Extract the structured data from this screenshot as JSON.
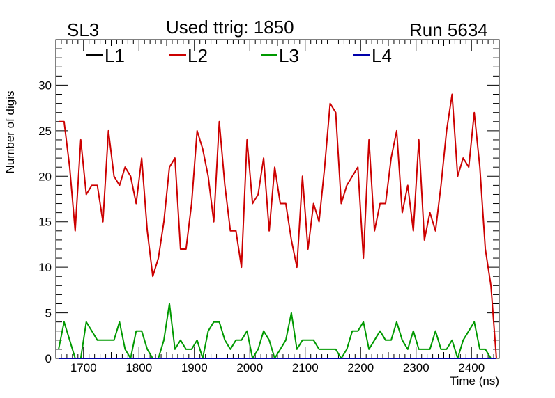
{
  "header": {
    "left": "SL3",
    "center": "Used ttrig: 1850",
    "right": "Run 5634"
  },
  "chart_data": {
    "type": "line",
    "xlabel": "Time (ns)",
    "ylabel": "Number of digis",
    "xlim": [
      1650,
      2450
    ],
    "ylim": [
      0,
      35
    ],
    "xticks": [
      1700,
      1800,
      1900,
      2000,
      2100,
      2200,
      2300,
      2400
    ],
    "yticks": [
      0,
      5,
      10,
      15,
      20,
      25,
      30
    ],
    "grid": false,
    "legend_position": "top",
    "x": [
      1655,
      1665,
      1675,
      1685,
      1695,
      1705,
      1715,
      1725,
      1735,
      1745,
      1755,
      1765,
      1775,
      1785,
      1795,
      1805,
      1815,
      1825,
      1835,
      1845,
      1855,
      1865,
      1875,
      1885,
      1895,
      1905,
      1915,
      1925,
      1935,
      1945,
      1955,
      1965,
      1975,
      1985,
      1995,
      2005,
      2015,
      2025,
      2035,
      2045,
      2055,
      2065,
      2075,
      2085,
      2095,
      2105,
      2115,
      2125,
      2135,
      2145,
      2155,
      2165,
      2175,
      2185,
      2195,
      2205,
      2215,
      2225,
      2235,
      2245,
      2255,
      2265,
      2275,
      2285,
      2295,
      2305,
      2315,
      2325,
      2335,
      2345,
      2355,
      2365,
      2375,
      2385,
      2395,
      2405,
      2415,
      2425,
      2435,
      2445
    ],
    "series": [
      {
        "name": "L1",
        "color": "#000000",
        "values": [
          0,
          0,
          0,
          0,
          0,
          0,
          0,
          0,
          0,
          0,
          0,
          0,
          0,
          0,
          0,
          0,
          0,
          0,
          0,
          0,
          0,
          0,
          0,
          0,
          0,
          0,
          0,
          0,
          0,
          0,
          0,
          0,
          0,
          0,
          0,
          0,
          0,
          0,
          0,
          0,
          0,
          0,
          0,
          0,
          0,
          0,
          0,
          0,
          0,
          0,
          0,
          0,
          0,
          0,
          0,
          0,
          0,
          0,
          0,
          0,
          0,
          0,
          0,
          0,
          0,
          0,
          0,
          0,
          0,
          0,
          0,
          0,
          0,
          0,
          0,
          0,
          0,
          0,
          0,
          0
        ]
      },
      {
        "name": "L2",
        "color": "#cc0000",
        "values": [
          26,
          26,
          21,
          14,
          24,
          18,
          19,
          19,
          15,
          25,
          20,
          19,
          21,
          20,
          17,
          22,
          14,
          9,
          11,
          15,
          21,
          22,
          12,
          12,
          17,
          25,
          23,
          20,
          15,
          26,
          19,
          14,
          14,
          10,
          24,
          17,
          18,
          22,
          14,
          21,
          17,
          17,
          13,
          10,
          20,
          12,
          17,
          15,
          21,
          28,
          27,
          17,
          19,
          20,
          21,
          11,
          24,
          14,
          17,
          17,
          22,
          25,
          16,
          19,
          14,
          24,
          13,
          16,
          14,
          19,
          25,
          29,
          20,
          22,
          21,
          27,
          21,
          12,
          8,
          0
        ]
      },
      {
        "name": "L3",
        "color": "#009900",
        "values": [
          1,
          4,
          2,
          0,
          0,
          4,
          3,
          2,
          2,
          2,
          2,
          4,
          1,
          0,
          3,
          3,
          1,
          0,
          0,
          2,
          6,
          1,
          2,
          1,
          1,
          2,
          0,
          3,
          4,
          4,
          2,
          1,
          2,
          2,
          3,
          0,
          1,
          3,
          2,
          0,
          1,
          2,
          5,
          1,
          2,
          2,
          2,
          1,
          1,
          1,
          1,
          0,
          1,
          3,
          3,
          4,
          1,
          2,
          3,
          2,
          2,
          4,
          2,
          1,
          3,
          1,
          1,
          1,
          3,
          1,
          1,
          2,
          0,
          2,
          3,
          4,
          1,
          1,
          0,
          0
        ]
      },
      {
        "name": "L4",
        "color": "#0000aa",
        "values": [
          0,
          0,
          0,
          0,
          0,
          0,
          0,
          0,
          0,
          0,
          0,
          0,
          0,
          0,
          0,
          0,
          0,
          0,
          0,
          0,
          0,
          0,
          0,
          0,
          0,
          0,
          0,
          0,
          0,
          0,
          0,
          0,
          0,
          0,
          0,
          0,
          0,
          0,
          0,
          0,
          0,
          0,
          0,
          0,
          0,
          0,
          0,
          0,
          0,
          0,
          0,
          0,
          0,
          0,
          0,
          0,
          0,
          0,
          0,
          0,
          0,
          0,
          0,
          0,
          0,
          0,
          0,
          0,
          0,
          0,
          0,
          0,
          0,
          0,
          0,
          0,
          0,
          0,
          0,
          0
        ]
      }
    ]
  }
}
